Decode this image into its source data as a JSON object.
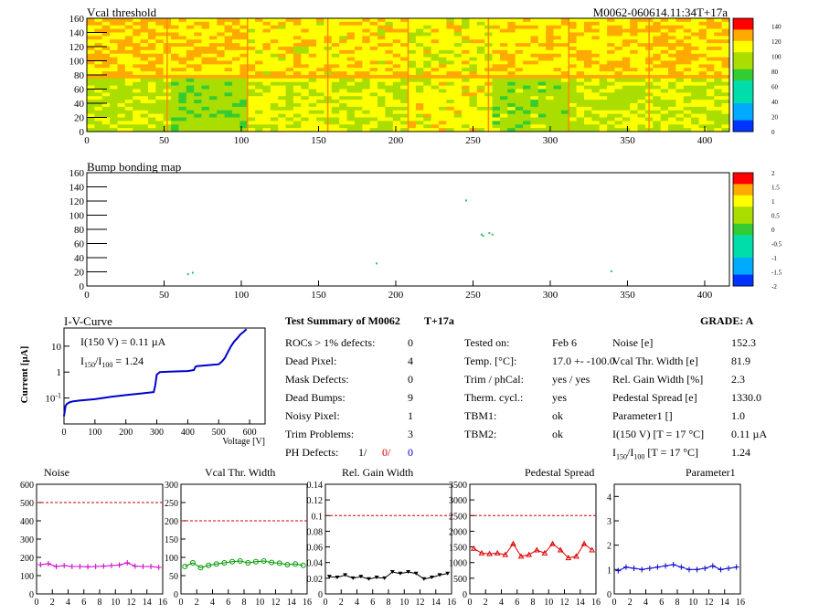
{
  "maps": {
    "vcal": {
      "title": "Vcal threshold",
      "id_label": "M0062-060614.11:34T+17a",
      "xticks": [
        0,
        50,
        100,
        150,
        200,
        250,
        300,
        350,
        400
      ],
      "yticks": [
        0,
        20,
        40,
        60,
        80,
        100,
        120,
        140,
        160
      ],
      "zticks": [
        0,
        20,
        40,
        60,
        80,
        100,
        120,
        140
      ]
    },
    "bump": {
      "title": "Bump bonding map",
      "xticks": [
        0,
        50,
        100,
        150,
        200,
        250,
        300,
        350,
        400
      ],
      "yticks": [
        0,
        20,
        40,
        60,
        80,
        100,
        120,
        140,
        160
      ],
      "zticks": [
        -2,
        -1.5,
        -1,
        -0.5,
        0,
        0.5,
        1,
        1.5,
        2
      ]
    }
  },
  "iv": {
    "title": "I-V-Curve",
    "ylabel": "Current [µA]",
    "xlabel": "Voltage [V]",
    "xticks": [
      0,
      100,
      200,
      300,
      400,
      500,
      600
    ],
    "note1": "I(150 V) = 0.11 µA",
    "note2_main": "I",
    "note2_sub1": "150",
    "note2_slash": "/I",
    "note2_sub2": "100",
    "note2_val": " =  1.24"
  },
  "summary": {
    "title": "Test Summary of M0062",
    "tag": "T+17a",
    "grade": "GRADE:  A",
    "left": [
      {
        "label": "ROCs > 1% defects:",
        "value": "0"
      },
      {
        "label": "Dead Pixel:",
        "value": "4"
      },
      {
        "label": "Mask Defects:",
        "value": "0"
      },
      {
        "label": "Dead Bumps:",
        "value": "9"
      },
      {
        "label": "Noisy Pixel:",
        "value": "1"
      },
      {
        "label": "Trim Problems:",
        "value": "3"
      }
    ],
    "ph_label": "PH Defects:",
    "ph1": "1/",
    "ph2": "0/",
    "ph3": "0",
    "mid": [
      {
        "label": "Tested on:",
        "value": "Feb 6"
      },
      {
        "label": "Temp. [°C]:",
        "value": "17.0 +- -100.0"
      },
      {
        "label": "Trim / phCal:",
        "value": "yes / yes"
      },
      {
        "label": "Therm. cycl.:",
        "value": "yes"
      },
      {
        "label": "TBM1:",
        "value": "ok"
      },
      {
        "label": "TBM2:",
        "value": "ok"
      }
    ],
    "right": [
      {
        "label": "Noise [e]",
        "value": "152.3"
      },
      {
        "label": "Vcal Thr. Width [e]",
        "value": "81.9"
      },
      {
        "label": "Rel. Gain Width [%]",
        "value": "2.3"
      },
      {
        "label": "Pedestal Spread [e]",
        "value": "1330.0"
      },
      {
        "label": "Parameter1 []",
        "value": "1.0"
      },
      {
        "label": "I(150 V) [T = 17 °C]",
        "value": "0.11 µA"
      }
    ],
    "ratio_label_a": "I",
    "ratio_sub1": "150",
    "ratio_label_b": "/I",
    "ratio_sub2": "100",
    "ratio_label_c": "  [T = 17 °C]",
    "ratio_value": "1.24"
  },
  "chart_data": [
    {
      "type": "line",
      "title": "Noise",
      "x": [
        0,
        1,
        2,
        3,
        4,
        5,
        6,
        7,
        8,
        9,
        10,
        11,
        12,
        13,
        14,
        15
      ],
      "values": [
        160,
        165,
        150,
        155,
        150,
        150,
        148,
        150,
        152,
        155,
        158,
        170,
        152,
        150,
        150,
        145
      ],
      "ylim": [
        0,
        600
      ],
      "yticks": [
        0,
        100,
        200,
        300,
        400,
        500,
        600
      ],
      "xticks": [
        0,
        2,
        4,
        6,
        8,
        10,
        12,
        14,
        16
      ],
      "limit": 500,
      "color": "#cc00cc",
      "marker": "plus"
    },
    {
      "type": "line",
      "title": "Vcal Thr. Width",
      "x": [
        0,
        1,
        2,
        3,
        4,
        5,
        6,
        7,
        8,
        9,
        10,
        11,
        12,
        13,
        14,
        15
      ],
      "values": [
        75,
        85,
        72,
        78,
        82,
        85,
        88,
        90,
        85,
        88,
        90,
        86,
        84,
        80,
        82,
        78
      ],
      "ylim": [
        0,
        300
      ],
      "yticks": [
        0,
        50,
        100,
        150,
        200,
        250,
        300
      ],
      "xticks": [
        0,
        2,
        4,
        6,
        8,
        10,
        12,
        14,
        16
      ],
      "limit": 200,
      "color": "#009900",
      "marker": "circle"
    },
    {
      "type": "line",
      "title": "Rel. Gain Width",
      "x": [
        0,
        1,
        2,
        3,
        4,
        5,
        6,
        7,
        8,
        9,
        10,
        11,
        12,
        13,
        14,
        15
      ],
      "values": [
        0.022,
        0.021,
        0.024,
        0.02,
        0.022,
        0.019,
        0.021,
        0.02,
        0.028,
        0.026,
        0.028,
        0.026,
        0.019,
        0.021,
        0.024,
        0.026
      ],
      "ylim": [
        0,
        0.14
      ],
      "yticks": [
        0,
        0.02,
        0.04,
        0.06,
        0.08,
        0.1,
        0.12,
        0.14
      ],
      "xticks": [
        0,
        2,
        4,
        6,
        8,
        10,
        12,
        14,
        16
      ],
      "limit": 0.1,
      "color": "#000000",
      "marker": "triangle-down"
    },
    {
      "type": "line",
      "title": "Pedestal Spread",
      "x": [
        0,
        1,
        2,
        3,
        4,
        5,
        6,
        7,
        8,
        9,
        10,
        11,
        12,
        13,
        14,
        15
      ],
      "values": [
        1450,
        1300,
        1280,
        1300,
        1250,
        1600,
        1200,
        1250,
        1400,
        1300,
        1600,
        1400,
        1150,
        1200,
        1600,
        1400
      ],
      "ylim": [
        0,
        3500
      ],
      "yticks": [
        0,
        500,
        1000,
        1500,
        2000,
        2500,
        3000,
        3500
      ],
      "xticks": [
        0,
        2,
        4,
        6,
        8,
        10,
        12,
        14,
        16
      ],
      "limit": 2500,
      "color": "#dd0000",
      "marker": "triangle-up"
    },
    {
      "type": "line",
      "title": "Parameter1",
      "x": [
        0,
        1,
        2,
        3,
        4,
        5,
        6,
        7,
        8,
        9,
        10,
        11,
        12,
        13,
        14,
        15
      ],
      "values": [
        0.95,
        1.1,
        1.05,
        1.0,
        1.05,
        1.1,
        1.15,
        1.2,
        1.1,
        1.0,
        1.0,
        1.05,
        1.15,
        1.0,
        1.05,
        1.1
      ],
      "ylim": [
        0,
        4.5
      ],
      "yticks": [
        0,
        1,
        2,
        3,
        4
      ],
      "xticks": [
        0,
        2,
        4,
        6,
        8,
        10,
        12,
        14,
        16
      ],
      "limit": null,
      "color": "#0000cc",
      "marker": "plus"
    },
    {
      "type": "line",
      "title": "I-V-Curve",
      "x": [
        0,
        5,
        10,
        20,
        30,
        50,
        100,
        150,
        200,
        250,
        290,
        295,
        300,
        310,
        350,
        400,
        420,
        425,
        430,
        480,
        500,
        510,
        520,
        530,
        540,
        550,
        560,
        570,
        580,
        590
      ],
      "values": [
        0.02,
        0.05,
        0.06,
        0.07,
        0.075,
        0.08,
        0.09,
        0.11,
        0.13,
        0.15,
        0.17,
        0.3,
        0.8,
        1.0,
        1.05,
        1.1,
        1.2,
        1.6,
        1.7,
        1.9,
        2.0,
        2.5,
        3.5,
        6,
        10,
        15,
        20,
        28,
        35,
        45
      ],
      "ylim": [
        0.01,
        50
      ],
      "xlim": [
        0,
        650
      ],
      "color": "#0000cc"
    }
  ]
}
